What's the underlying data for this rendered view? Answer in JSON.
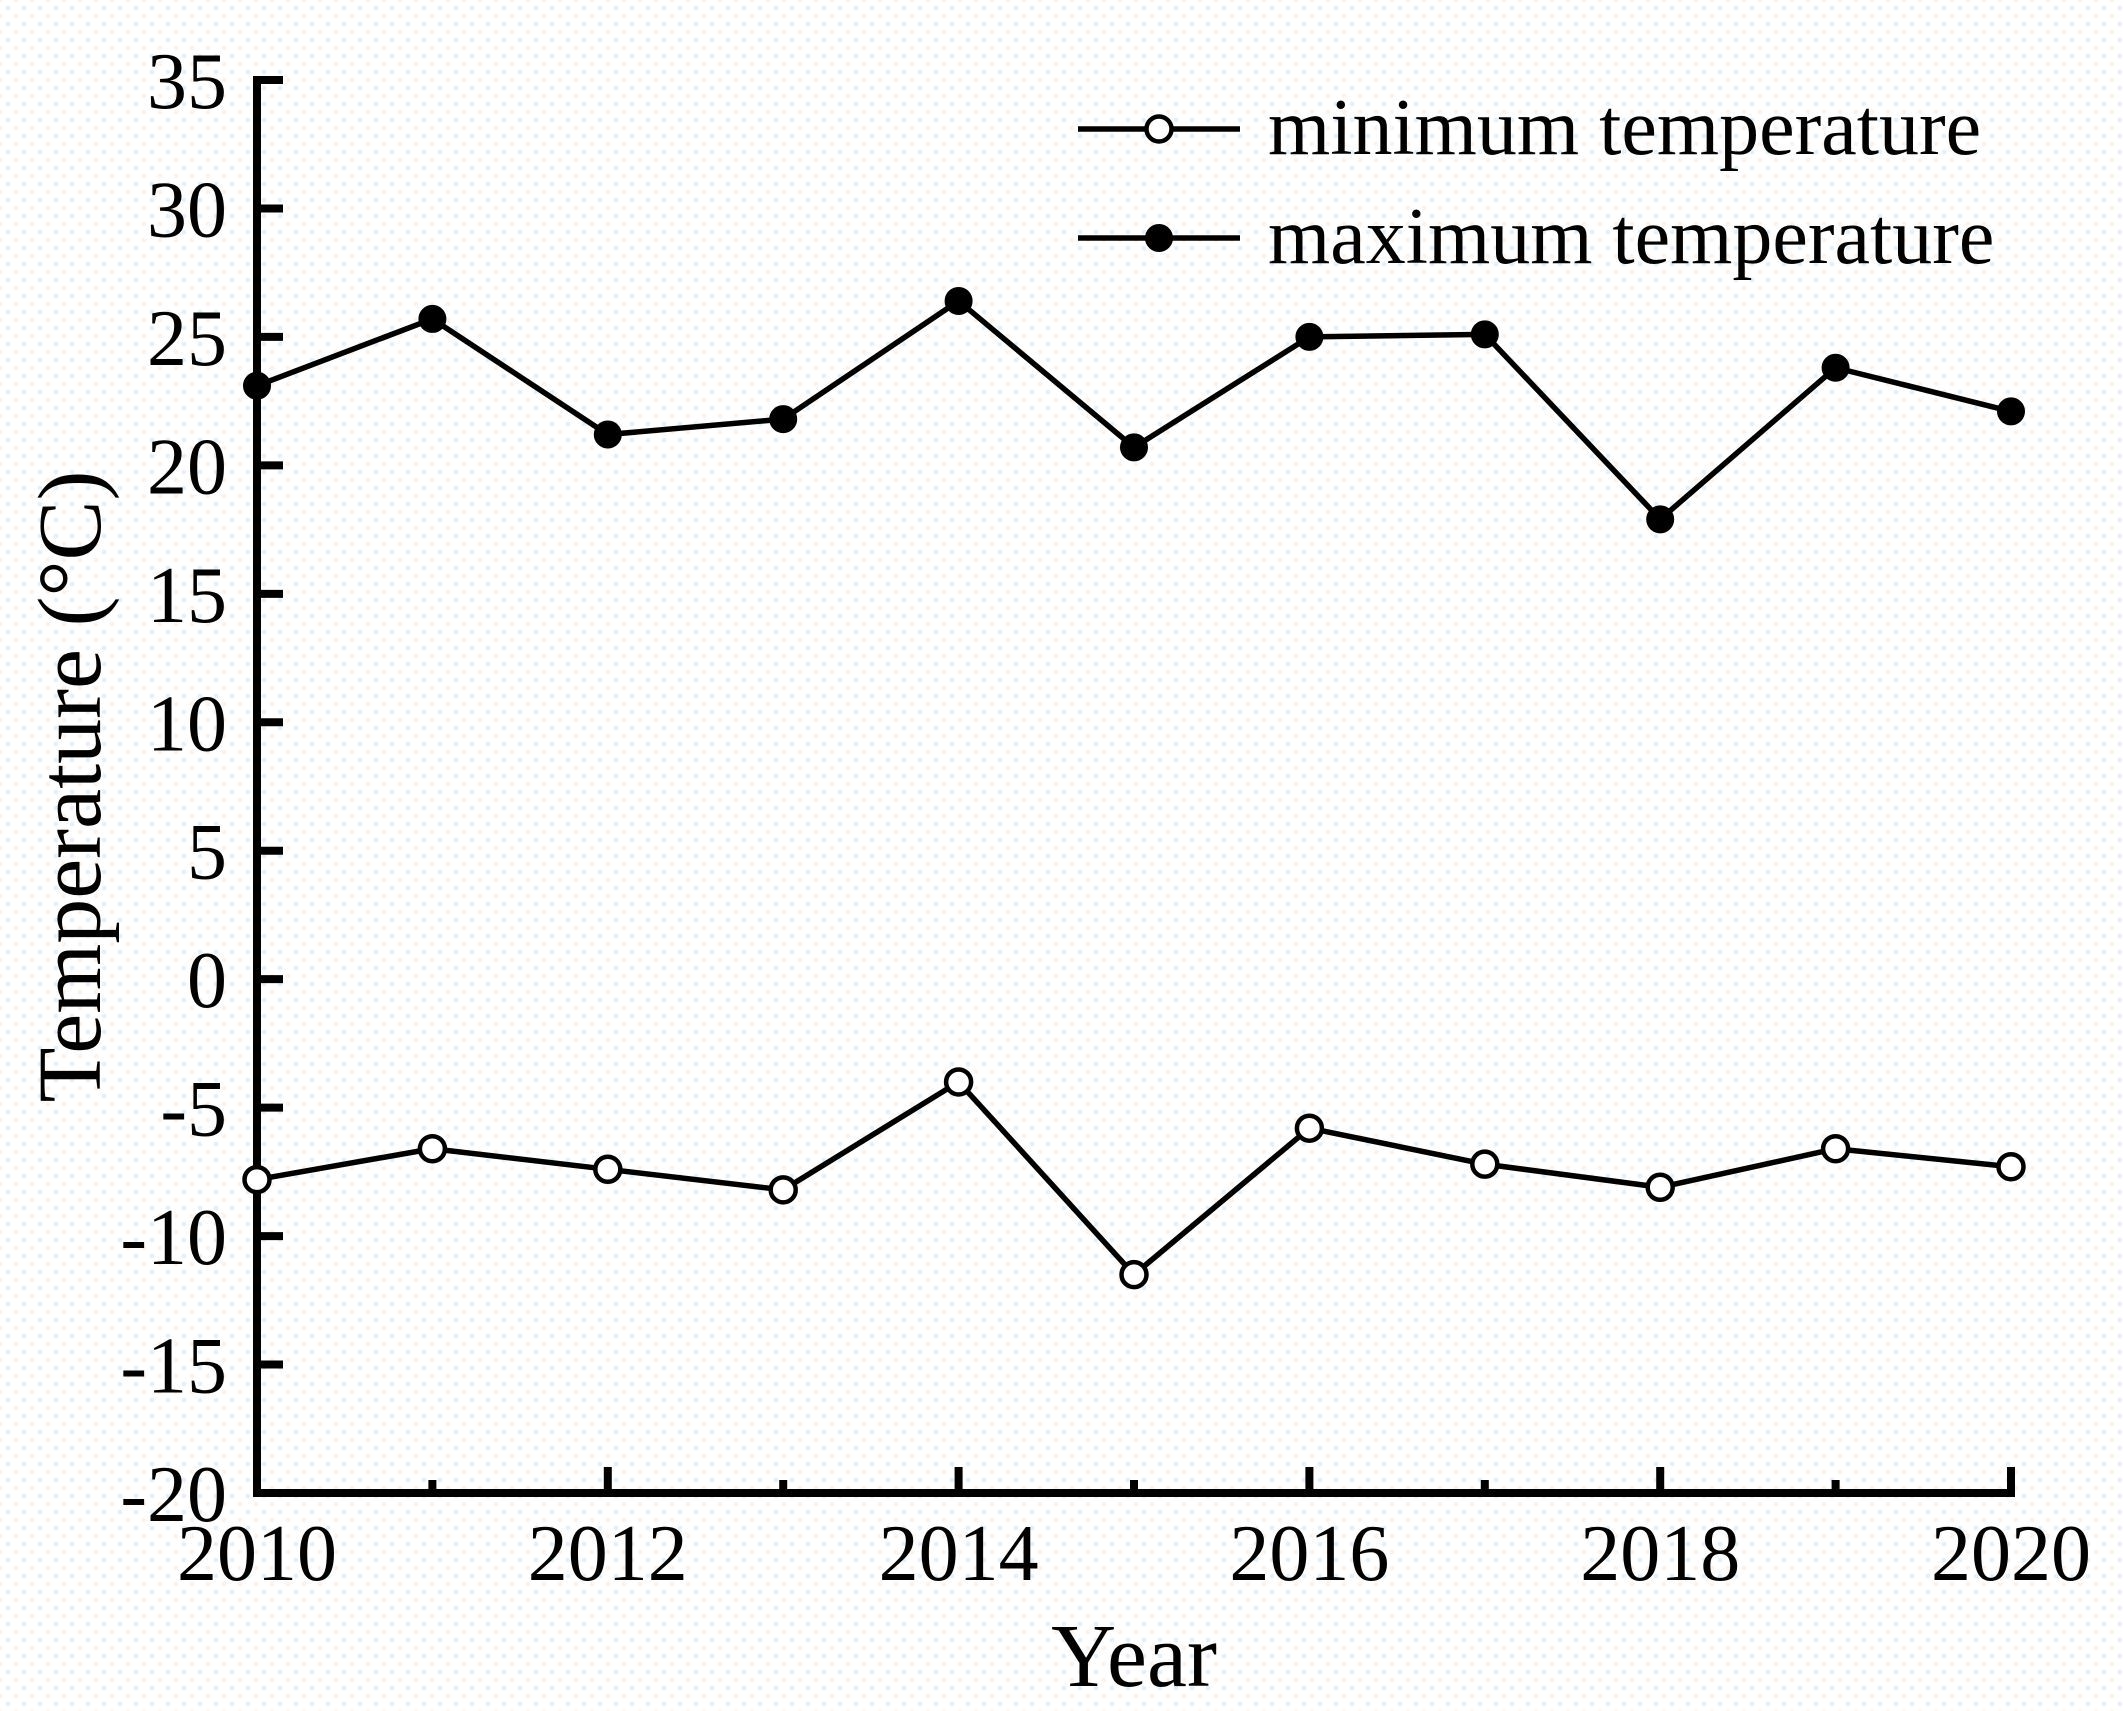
{
  "figure": {
    "background": "#ffffff",
    "ink_color": "#000000"
  },
  "chart_data": {
    "type": "line",
    "title": "",
    "xlabel": "Year",
    "ylabel": "Temperature (°C)",
    "x": [
      2010,
      2011,
      2012,
      2013,
      2014,
      2015,
      2016,
      2017,
      2018,
      2019,
      2020
    ],
    "series": [
      {
        "name": "minimum temperature",
        "marker": "open-circle",
        "values": [
          -7.8,
          -6.6,
          -7.4,
          -8.2,
          -4.0,
          -11.5,
          -5.8,
          -7.2,
          -8.1,
          -6.6,
          -7.3
        ]
      },
      {
        "name": "maximum temperature",
        "marker": "filled-circle",
        "values": [
          23.1,
          25.7,
          21.2,
          21.8,
          26.4,
          20.7,
          25.0,
          25.1,
          17.9,
          23.8,
          22.1
        ]
      }
    ],
    "xlim": [
      2010,
      2020
    ],
    "ylim": [
      -20,
      35
    ],
    "y_ticks": [
      35,
      30,
      25,
      20,
      15,
      10,
      5,
      0,
      -5,
      -10,
      -15,
      -20
    ],
    "y_tick_labels": [
      "35",
      "30",
      "25",
      "20",
      "15",
      "10",
      "5",
      "0",
      "-5",
      "-10",
      "-15",
      "-20"
    ],
    "x_major_ticks": [
      2010,
      2012,
      2014,
      2016,
      2018,
      2020
    ],
    "x_tick_labels": [
      "2010",
      "2012",
      "2014",
      "2016",
      "2018",
      "2020"
    ],
    "x_minor_ticks": [
      2011,
      2013,
      2015,
      2017,
      2019
    ],
    "grid": false,
    "legend_position": "top-right"
  },
  "legend": {
    "items": [
      {
        "label": "minimum temperature",
        "marker": "open-circle"
      },
      {
        "label": "maximum temperature",
        "marker": "filled-circle"
      }
    ]
  }
}
